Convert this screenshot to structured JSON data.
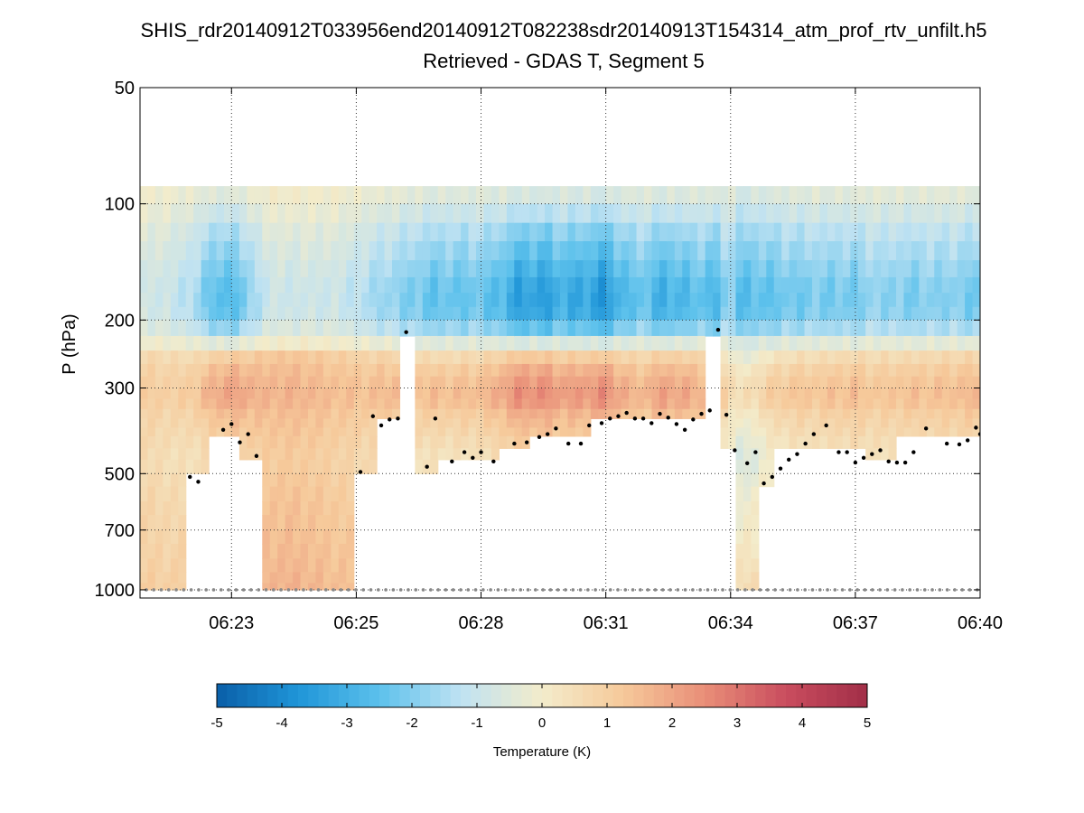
{
  "chart_data": {
    "type": "heatmap",
    "title": "SHIS_rdr20140912T033956end20140912T082238sdr20140913T154314_atm_prof_rtv_unfilt.h5",
    "subtitle": "Retrieved - GDAS T, Segment 5",
    "xlabel": "",
    "ylabel": "P (hPa)",
    "x_ticks": [
      {
        "label": "06:23",
        "minutes": 2.0
      },
      {
        "label": "06:25",
        "minutes": 5.0
      },
      {
        "label": "06:28",
        "minutes": 8.0
      },
      {
        "label": "06:31",
        "minutes": 11.0
      },
      {
        "label": "06:34",
        "minutes": 14.0
      },
      {
        "label": "06:37",
        "minutes": 17.0
      },
      {
        "label": "06:40",
        "minutes": 20.0
      }
    ],
    "xlim_minutes": [
      -0.2,
      20.0
    ],
    "y_ticks": [
      50,
      100,
      200,
      300,
      500,
      700,
      1000
    ],
    "ylim": [
      50,
      1050
    ],
    "y_scale": "log",
    "y_reversed": true,
    "grid": true,
    "colorbar": {
      "label": "Temperature (K)",
      "range": [
        -5,
        5
      ],
      "ticks": [
        "-5",
        "-4",
        "-3",
        "-2",
        "-1",
        "0",
        "1",
        "2",
        "3",
        "4",
        "5"
      ],
      "colors": [
        "#0a5fa8",
        "#1f95d8",
        "#5cc1ec",
        "#bfe2f2",
        "#f3eccb",
        "#f6c99a",
        "#e98e78",
        "#c94d5e",
        "#a22e48"
      ]
    },
    "pressure_levels": [
      90,
      100,
      112,
      125,
      140,
      155,
      170,
      185,
      200,
      220,
      240,
      260,
      280,
      300,
      320,
      340,
      360,
      380,
      400,
      430,
      460,
      500,
      540,
      590,
      640,
      700,
      760,
      830,
      900,
      960,
      1000
    ],
    "profile_anchors": [
      {
        "p": 90,
        "v": -0.4
      },
      {
        "p": 100,
        "v": -0.7
      },
      {
        "p": 112,
        "v": -1.3
      },
      {
        "p": 125,
        "v": -1.7
      },
      {
        "p": 140,
        "v": -2.0
      },
      {
        "p": 160,
        "v": -2.4
      },
      {
        "p": 180,
        "v": -2.5
      },
      {
        "p": 200,
        "v": -2.3
      },
      {
        "p": 220,
        "v": -1.3
      },
      {
        "p": 240,
        "v": 0.3
      },
      {
        "p": 260,
        "v": 1.0
      },
      {
        "p": 290,
        "v": 1.4
      },
      {
        "p": 320,
        "v": 1.6
      },
      {
        "p": 350,
        "v": 1.1
      },
      {
        "p": 400,
        "v": 0.7
      },
      {
        "p": 460,
        "v": 0.3
      },
      {
        "p": 520,
        "v": 0.6
      },
      {
        "p": 600,
        "v": 0.9
      },
      {
        "p": 700,
        "v": 1.0
      },
      {
        "p": 850,
        "v": 1.3
      },
      {
        "p": 1000,
        "v": 1.6
      }
    ],
    "profile_columns": [
      {
        "t": 0.0,
        "bottom": 1000,
        "amp": 0.35,
        "off": 0.5
      },
      {
        "t": 0.58,
        "bottom": 1000,
        "amp": 0.45,
        "off": 0.3
      },
      {
        "t": 1.1,
        "bottom": 510,
        "amp": 0.65,
        "off": 0.2
      },
      {
        "t": 1.8,
        "bottom": 390,
        "amp": 1.1,
        "off": 0.3
      },
      {
        "t": 2.5,
        "bottom": 450,
        "amp": 0.85,
        "off": 0.6
      },
      {
        "t": 2.8,
        "bottom": 1000,
        "amp": 0.5,
        "off": 0.9
      },
      {
        "t": 3.3,
        "bottom": 1000,
        "amp": 0.45,
        "off": 1.0
      },
      {
        "t": 4.0,
        "bottom": 1000,
        "amp": 0.45,
        "off": 0.9
      },
      {
        "t": 4.7,
        "bottom": 1000,
        "amp": 0.5,
        "off": 0.7
      },
      {
        "t": 5.3,
        "bottom": 500,
        "amp": 0.6,
        "off": 0.4
      },
      {
        "t": 5.8,
        "bottom": 360,
        "amp": 0.75,
        "off": 0.4
      },
      {
        "t": 6.3,
        "bottom": 210,
        "amp": 0.9,
        "off": 0.3
      },
      {
        "t": 6.6,
        "bottom": 480,
        "amp": 0.95,
        "off": 0.0
      },
      {
        "t": 7.4,
        "bottom": 460,
        "amp": 0.9,
        "off": 0.0
      },
      {
        "t": 8.1,
        "bottom": 460,
        "amp": 1.0,
        "off": 0.1
      },
      {
        "t": 8.8,
        "bottom": 420,
        "amp": 1.3,
        "off": 0.3
      },
      {
        "t": 9.5,
        "bottom": 410,
        "amp": 1.4,
        "off": 0.3
      },
      {
        "t": 10.3,
        "bottom": 390,
        "amp": 1.3,
        "off": 0.2
      },
      {
        "t": 11.0,
        "bottom": 360,
        "amp": 1.4,
        "off": 0.2
      },
      {
        "t": 11.7,
        "bottom": 360,
        "amp": 1.0,
        "off": 0.1
      },
      {
        "t": 12.4,
        "bottom": 350,
        "amp": 1.2,
        "off": 0.2
      },
      {
        "t": 13.1,
        "bottom": 360,
        "amp": 1.0,
        "off": 0.2
      },
      {
        "t": 13.6,
        "bottom": 210,
        "amp": 1.2,
        "off": 0.1
      },
      {
        "t": 13.95,
        "bottom": 420,
        "amp": 0.7,
        "off": -0.3
      },
      {
        "t": 14.2,
        "bottom": 1000,
        "amp": 0.9,
        "off": -1.0
      },
      {
        "t": 14.5,
        "bottom": 1000,
        "amp": 0.9,
        "off": -0.9
      },
      {
        "t": 14.8,
        "bottom": 530,
        "amp": 0.9,
        "off": -0.5
      },
      {
        "t": 15.4,
        "bottom": 420,
        "amp": 0.95,
        "off": -0.1
      },
      {
        "t": 16.2,
        "bottom": 430,
        "amp": 0.8,
        "off": 0.0
      },
      {
        "t": 17.0,
        "bottom": 440,
        "amp": 0.9,
        "off": 0.1
      },
      {
        "t": 17.6,
        "bottom": 450,
        "amp": 0.75,
        "off": 0.1
      },
      {
        "t": 18.3,
        "bottom": 400,
        "amp": 0.8,
        "off": 0.1
      },
      {
        "t": 19.3,
        "bottom": 400,
        "amp": 0.85,
        "off": 0.2
      },
      {
        "t": 20.0,
        "bottom": 400,
        "amp": 0.85,
        "off": 0.2
      }
    ],
    "cloud_top_markers": [
      {
        "t": 1.0,
        "p": 510
      },
      {
        "t": 1.2,
        "p": 525
      },
      {
        "t": 1.8,
        "p": 385
      },
      {
        "t": 2.0,
        "p": 372
      },
      {
        "t": 2.2,
        "p": 415
      },
      {
        "t": 2.4,
        "p": 395
      },
      {
        "t": 2.6,
        "p": 450
      },
      {
        "t": 5.1,
        "p": 495
      },
      {
        "t": 5.4,
        "p": 355
      },
      {
        "t": 5.6,
        "p": 375
      },
      {
        "t": 5.8,
        "p": 362
      },
      {
        "t": 6.0,
        "p": 360
      },
      {
        "t": 6.2,
        "p": 215
      },
      {
        "t": 6.7,
        "p": 480
      },
      {
        "t": 6.9,
        "p": 360
      },
      {
        "t": 7.3,
        "p": 465
      },
      {
        "t": 7.6,
        "p": 440
      },
      {
        "t": 7.8,
        "p": 455
      },
      {
        "t": 8.0,
        "p": 440
      },
      {
        "t": 8.3,
        "p": 465
      },
      {
        "t": 8.8,
        "p": 418
      },
      {
        "t": 9.1,
        "p": 415
      },
      {
        "t": 9.4,
        "p": 402
      },
      {
        "t": 9.6,
        "p": 395
      },
      {
        "t": 9.8,
        "p": 382
      },
      {
        "t": 10.1,
        "p": 418
      },
      {
        "t": 10.4,
        "p": 418
      },
      {
        "t": 10.6,
        "p": 375
      },
      {
        "t": 10.9,
        "p": 370
      },
      {
        "t": 11.1,
        "p": 360
      },
      {
        "t": 11.3,
        "p": 355
      },
      {
        "t": 11.5,
        "p": 348
      },
      {
        "t": 11.7,
        "p": 360
      },
      {
        "t": 11.9,
        "p": 360
      },
      {
        "t": 12.1,
        "p": 370
      },
      {
        "t": 12.3,
        "p": 350
      },
      {
        "t": 12.5,
        "p": 358
      },
      {
        "t": 12.7,
        "p": 372
      },
      {
        "t": 12.9,
        "p": 385
      },
      {
        "t": 13.1,
        "p": 362
      },
      {
        "t": 13.3,
        "p": 350
      },
      {
        "t": 13.5,
        "p": 343
      },
      {
        "t": 13.7,
        "p": 212
      },
      {
        "t": 13.9,
        "p": 352
      },
      {
        "t": 14.1,
        "p": 435
      },
      {
        "t": 14.4,
        "p": 470
      },
      {
        "t": 14.6,
        "p": 440
      },
      {
        "t": 14.8,
        "p": 530
      },
      {
        "t": 15.0,
        "p": 510
      },
      {
        "t": 15.2,
        "p": 485
      },
      {
        "t": 15.4,
        "p": 460
      },
      {
        "t": 15.6,
        "p": 445
      },
      {
        "t": 15.8,
        "p": 418
      },
      {
        "t": 16.0,
        "p": 395
      },
      {
        "t": 16.3,
        "p": 375
      },
      {
        "t": 16.6,
        "p": 440
      },
      {
        "t": 16.8,
        "p": 440
      },
      {
        "t": 17.0,
        "p": 468
      },
      {
        "t": 17.2,
        "p": 455
      },
      {
        "t": 17.4,
        "p": 445
      },
      {
        "t": 17.6,
        "p": 435
      },
      {
        "t": 17.8,
        "p": 465
      },
      {
        "t": 18.0,
        "p": 468
      },
      {
        "t": 18.2,
        "p": 468
      },
      {
        "t": 18.4,
        "p": 440
      },
      {
        "t": 18.7,
        "p": 382
      },
      {
        "t": 19.2,
        "p": 418
      },
      {
        "t": 19.5,
        "p": 420
      },
      {
        "t": 19.7,
        "p": 410
      },
      {
        "t": 19.9,
        "p": 380
      },
      {
        "t": 20.0,
        "p": 395
      }
    ],
    "surface_marker_pressure": 1000
  }
}
